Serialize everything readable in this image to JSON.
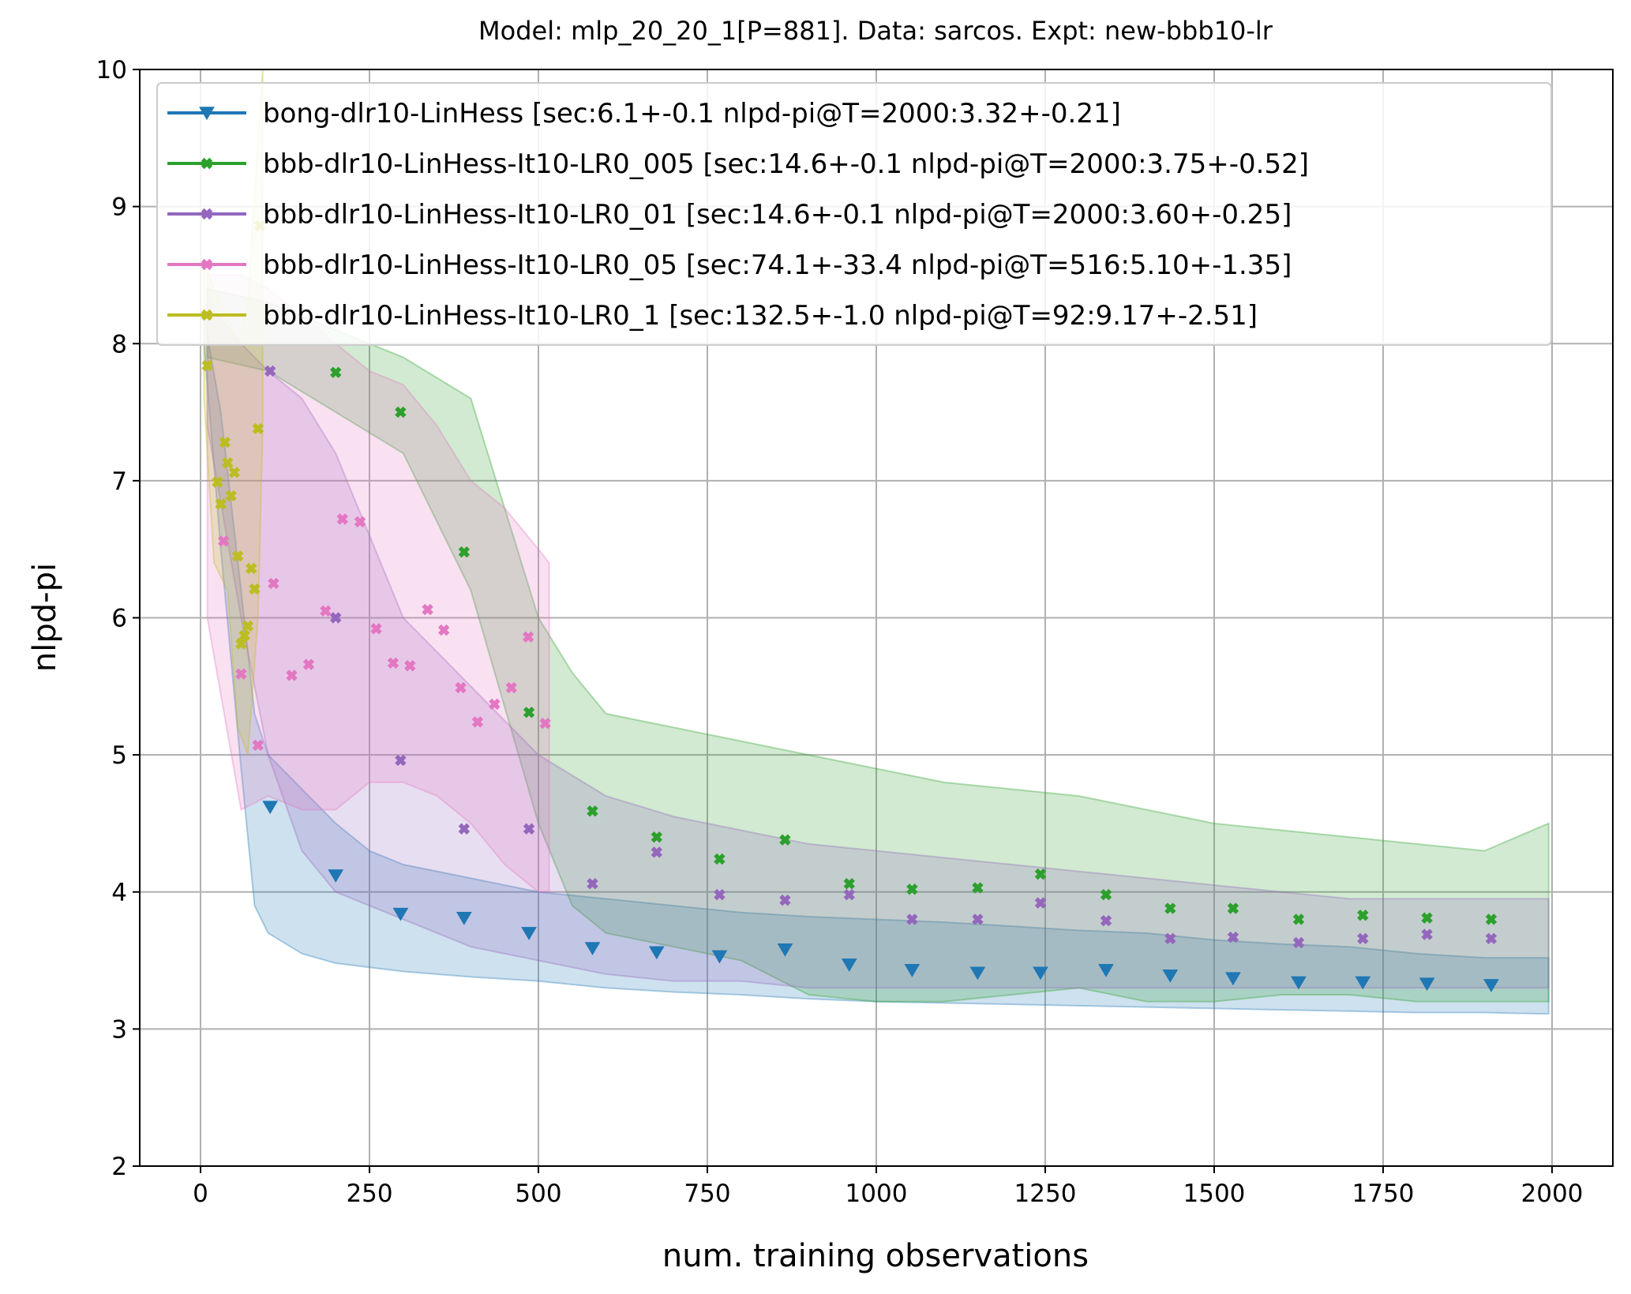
{
  "chart_data": {
    "type": "scatter",
    "title": "Model: mlp_20_20_1[P=881]. Data: sarcos. Expt: new-bbb10-lr",
    "xlabel": "num. training observations",
    "ylabel": "nlpd-pi",
    "xlim": [
      -90,
      2090
    ],
    "ylim": [
      2,
      10
    ],
    "x_ticks": [
      0,
      250,
      500,
      750,
      1000,
      1250,
      1500,
      1750,
      2000
    ],
    "y_ticks": [
      2,
      3,
      4,
      5,
      6,
      7,
      8,
      9,
      10
    ],
    "grid": true,
    "legend_position": "top",
    "series": [
      {
        "name": "bong-dlr10-LinHess [sec:6.1+-0.1 nlpd-pi@T=2000:3.32+-0.21]",
        "color": "#1f77b4",
        "marker": "triangle-down",
        "x": [
          103,
          200,
          296,
          390,
          486,
          580,
          675,
          768,
          865,
          960,
          1053,
          1150,
          1243,
          1340,
          1435,
          1528,
          1625,
          1720,
          1815,
          1910
        ],
        "y": [
          4.62,
          4.12,
          3.84,
          3.81,
          3.7,
          3.59,
          3.56,
          3.53,
          3.58,
          3.47,
          3.43,
          3.41,
          3.41,
          3.43,
          3.39,
          3.37,
          3.34,
          3.34,
          3.33,
          3.32
        ],
        "band_x": [
          5,
          30,
          60,
          80,
          100,
          150,
          200,
          250,
          300,
          400,
          500,
          600,
          700,
          800,
          900,
          1000,
          1100,
          1200,
          1300,
          1400,
          1500,
          1600,
          1700,
          1800,
          1900,
          1995
        ],
        "band_upper": [
          8.2,
          7.5,
          6.2,
          5.3,
          5.0,
          4.75,
          4.5,
          4.3,
          4.2,
          4.1,
          4.0,
          3.95,
          3.9,
          3.85,
          3.82,
          3.8,
          3.78,
          3.75,
          3.72,
          3.7,
          3.65,
          3.62,
          3.6,
          3.55,
          3.52,
          3.52
        ],
        "band_lower": [
          8.0,
          6.5,
          4.9,
          3.9,
          3.7,
          3.55,
          3.48,
          3.45,
          3.42,
          3.38,
          3.35,
          3.3,
          3.27,
          3.25,
          3.22,
          3.2,
          3.19,
          3.18,
          3.17,
          3.16,
          3.15,
          3.14,
          3.13,
          3.12,
          3.12,
          3.11
        ]
      },
      {
        "name": "bbb-dlr10-LinHess-It10-LR0_005 [sec:14.6+-0.1 nlpd-pi@T=2000:3.75+-0.52]",
        "color": "#2ca02c",
        "marker": "X",
        "x": [
          200,
          296,
          390,
          486,
          580,
          675,
          768,
          865,
          960,
          1053,
          1150,
          1243,
          1340,
          1435,
          1528,
          1625,
          1720,
          1815,
          1910
        ],
        "y": [
          7.79,
          7.5,
          6.48,
          5.31,
          4.59,
          4.4,
          4.24,
          4.38,
          4.06,
          4.02,
          4.03,
          4.13,
          3.98,
          3.88,
          3.88,
          3.8,
          3.83,
          3.81,
          3.8
        ],
        "band_x": [
          10,
          100,
          200,
          300,
          400,
          500,
          550,
          600,
          700,
          800,
          900,
          1000,
          1100,
          1200,
          1300,
          1400,
          1500,
          1600,
          1700,
          1800,
          1900,
          1995
        ],
        "band_upper": [
          8.4,
          8.3,
          8.1,
          7.9,
          7.6,
          6.0,
          5.6,
          5.3,
          5.2,
          5.1,
          5.0,
          4.9,
          4.8,
          4.75,
          4.7,
          4.6,
          4.5,
          4.45,
          4.4,
          4.35,
          4.3,
          4.5
        ],
        "band_lower": [
          7.9,
          7.8,
          7.5,
          7.2,
          6.2,
          4.5,
          3.9,
          3.7,
          3.6,
          3.5,
          3.25,
          3.2,
          3.2,
          3.25,
          3.3,
          3.2,
          3.2,
          3.25,
          3.25,
          3.2,
          3.2,
          3.2
        ]
      },
      {
        "name": "bbb-dlr10-LinHess-It10-LR0_01 [sec:14.6+-0.1 nlpd-pi@T=2000:3.60+-0.25]",
        "color": "#9467bd",
        "marker": "X",
        "x": [
          103,
          200,
          296,
          390,
          486,
          580,
          675,
          768,
          865,
          960,
          1053,
          1150,
          1243,
          1340,
          1435,
          1528,
          1625,
          1720,
          1815,
          1910
        ],
        "y": [
          7.8,
          6.0,
          4.96,
          4.46,
          4.46,
          4.06,
          4.29,
          3.98,
          3.94,
          3.98,
          3.8,
          3.8,
          3.92,
          3.79,
          3.66,
          3.67,
          3.63,
          3.66,
          3.69,
          3.66
        ],
        "band_x": [
          10,
          60,
          100,
          150,
          200,
          300,
          400,
          500,
          600,
          700,
          800,
          900,
          1000,
          1100,
          1200,
          1300,
          1400,
          1500,
          1600,
          1700,
          1800,
          1900,
          1995
        ],
        "band_upper": [
          8.3,
          8.0,
          7.8,
          7.6,
          7.2,
          6.0,
          5.5,
          5.0,
          4.7,
          4.55,
          4.45,
          4.35,
          4.3,
          4.25,
          4.2,
          4.15,
          4.1,
          4.05,
          4.0,
          3.95,
          3.95,
          3.95,
          3.95
        ],
        "band_lower": [
          7.4,
          6.0,
          5.0,
          4.3,
          4.0,
          3.8,
          3.6,
          3.5,
          3.4,
          3.35,
          3.35,
          3.3,
          3.3,
          3.3,
          3.3,
          3.3,
          3.3,
          3.3,
          3.3,
          3.3,
          3.3,
          3.3,
          3.3
        ]
      },
      {
        "name": "bbb-dlr10-LinHess-It10-LR0_05 [sec:74.1+-33.4 nlpd-pi@T=516:5.10+-1.35]",
        "color": "#e377c2",
        "marker": "X",
        "x": [
          34,
          60,
          85,
          108,
          135,
          160,
          185,
          210,
          236,
          260,
          285,
          310,
          336,
          360,
          385,
          410,
          435,
          460,
          485,
          510
        ],
        "y": [
          6.56,
          5.59,
          5.07,
          6.25,
          5.58,
          5.66,
          6.05,
          6.72,
          6.7,
          5.92,
          5.67,
          5.65,
          6.06,
          5.91,
          5.49,
          5.24,
          5.37,
          5.49,
          5.86,
          5.23
        ],
        "band_x": [
          10,
          60,
          100,
          150,
          200,
          250,
          300,
          350,
          400,
          450,
          500,
          516
        ],
        "band_upper": [
          8.5,
          8.5,
          8.4,
          8.2,
          8.0,
          7.8,
          7.7,
          7.4,
          7.0,
          6.8,
          6.5,
          6.4
        ],
        "band_lower": [
          6.0,
          4.6,
          4.7,
          4.6,
          4.6,
          4.8,
          4.8,
          4.7,
          4.5,
          4.2,
          4.0,
          4.0
        ]
      },
      {
        "name": "bbb-dlr10-LinHess-It10-LR0_1 [sec:132.5+-1.0 nlpd-pi@T=92:9.17+-2.51]",
        "color": "#bcbd22",
        "marker": "X",
        "x": [
          10,
          25,
          30,
          36,
          40,
          45,
          50,
          55,
          60,
          65,
          70,
          75,
          80,
          85,
          88
        ],
        "y": [
          7.84,
          6.99,
          6.83,
          7.28,
          7.13,
          6.89,
          7.06,
          6.45,
          5.81,
          5.87,
          5.94,
          6.36,
          6.21,
          7.38,
          8.86
        ],
        "band_x": [
          5,
          20,
          40,
          55,
          70,
          85,
          92
        ],
        "band_upper": [
          8.6,
          8.4,
          8.2,
          8.0,
          8.3,
          9.5,
          10.0
        ],
        "band_lower": [
          7.6,
          6.4,
          6.2,
          5.2,
          5.0,
          6.0,
          7.4
        ]
      }
    ]
  }
}
